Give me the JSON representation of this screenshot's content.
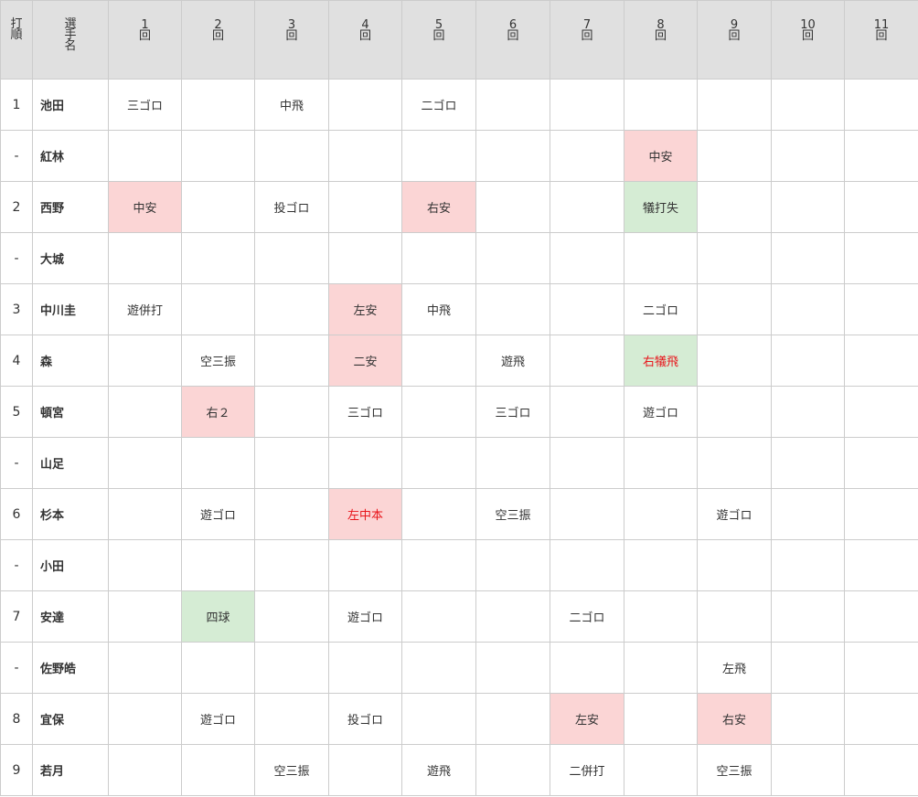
{
  "header": {
    "order_label": [
      "打",
      "順"
    ],
    "name_label": [
      "選",
      "手",
      "名"
    ],
    "innings": [
      {
        "num": "1",
        "unit": "回"
      },
      {
        "num": "2",
        "unit": "回"
      },
      {
        "num": "3",
        "unit": "回"
      },
      {
        "num": "4",
        "unit": "回"
      },
      {
        "num": "5",
        "unit": "回"
      },
      {
        "num": "6",
        "unit": "回"
      },
      {
        "num": "7",
        "unit": "回"
      },
      {
        "num": "8",
        "unit": "回"
      },
      {
        "num": "9",
        "unit": "回"
      },
      {
        "num": "10",
        "unit": "回"
      },
      {
        "num": "11",
        "unit": "回"
      }
    ]
  },
  "colors": {
    "hit_bg": "#fbd5d5",
    "other_bg": "#d5ecd4",
    "scoring_text": "#e8161c",
    "header_bg": "#e0e0e0"
  },
  "rows": [
    {
      "order": "1",
      "name": "池田",
      "cells": [
        {
          "text": "三ゴロ"
        },
        {
          "text": ""
        },
        {
          "text": "中飛"
        },
        {
          "text": ""
        },
        {
          "text": "二ゴロ"
        },
        {
          "text": ""
        },
        {
          "text": ""
        },
        {
          "text": ""
        },
        {
          "text": ""
        },
        {
          "text": ""
        },
        {
          "text": ""
        }
      ]
    },
    {
      "order": "-",
      "name": "紅林",
      "cells": [
        {
          "text": ""
        },
        {
          "text": ""
        },
        {
          "text": ""
        },
        {
          "text": ""
        },
        {
          "text": ""
        },
        {
          "text": ""
        },
        {
          "text": ""
        },
        {
          "text": "中安",
          "type": "hit"
        },
        {
          "text": ""
        },
        {
          "text": ""
        },
        {
          "text": ""
        }
      ]
    },
    {
      "order": "2",
      "name": "西野",
      "cells": [
        {
          "text": "中安",
          "type": "hit"
        },
        {
          "text": ""
        },
        {
          "text": "投ゴロ"
        },
        {
          "text": ""
        },
        {
          "text": "右安",
          "type": "hit"
        },
        {
          "text": ""
        },
        {
          "text": ""
        },
        {
          "text": "犠打失",
          "type": "other"
        },
        {
          "text": ""
        },
        {
          "text": ""
        },
        {
          "text": ""
        }
      ]
    },
    {
      "order": "-",
      "name": "大城",
      "cells": [
        {
          "text": ""
        },
        {
          "text": ""
        },
        {
          "text": ""
        },
        {
          "text": ""
        },
        {
          "text": ""
        },
        {
          "text": ""
        },
        {
          "text": ""
        },
        {
          "text": ""
        },
        {
          "text": ""
        },
        {
          "text": ""
        },
        {
          "text": ""
        }
      ]
    },
    {
      "order": "3",
      "name": "中川圭",
      "cells": [
        {
          "text": "遊併打"
        },
        {
          "text": ""
        },
        {
          "text": ""
        },
        {
          "text": "左安",
          "type": "hit"
        },
        {
          "text": "中飛"
        },
        {
          "text": ""
        },
        {
          "text": ""
        },
        {
          "text": "二ゴロ"
        },
        {
          "text": ""
        },
        {
          "text": ""
        },
        {
          "text": ""
        }
      ]
    },
    {
      "order": "4",
      "name": "森",
      "cells": [
        {
          "text": ""
        },
        {
          "text": "空三振"
        },
        {
          "text": ""
        },
        {
          "text": "二安",
          "type": "hit"
        },
        {
          "text": ""
        },
        {
          "text": "遊飛"
        },
        {
          "text": ""
        },
        {
          "text": "右犠飛",
          "type": "other",
          "scoring": true
        },
        {
          "text": ""
        },
        {
          "text": ""
        },
        {
          "text": ""
        }
      ]
    },
    {
      "order": "5",
      "name": "頓宮",
      "cells": [
        {
          "text": ""
        },
        {
          "text": "右２",
          "type": "hit"
        },
        {
          "text": ""
        },
        {
          "text": "三ゴロ"
        },
        {
          "text": ""
        },
        {
          "text": "三ゴロ"
        },
        {
          "text": ""
        },
        {
          "text": "遊ゴロ"
        },
        {
          "text": ""
        },
        {
          "text": ""
        },
        {
          "text": ""
        }
      ]
    },
    {
      "order": "-",
      "name": "山足",
      "cells": [
        {
          "text": ""
        },
        {
          "text": ""
        },
        {
          "text": ""
        },
        {
          "text": ""
        },
        {
          "text": ""
        },
        {
          "text": ""
        },
        {
          "text": ""
        },
        {
          "text": ""
        },
        {
          "text": ""
        },
        {
          "text": ""
        },
        {
          "text": ""
        }
      ]
    },
    {
      "order": "6",
      "name": "杉本",
      "cells": [
        {
          "text": ""
        },
        {
          "text": "遊ゴロ"
        },
        {
          "text": ""
        },
        {
          "text": "左中本",
          "type": "hit",
          "scoring": true
        },
        {
          "text": ""
        },
        {
          "text": "空三振"
        },
        {
          "text": ""
        },
        {
          "text": ""
        },
        {
          "text": "遊ゴロ"
        },
        {
          "text": ""
        },
        {
          "text": ""
        }
      ]
    },
    {
      "order": "-",
      "name": "小田",
      "cells": [
        {
          "text": ""
        },
        {
          "text": ""
        },
        {
          "text": ""
        },
        {
          "text": ""
        },
        {
          "text": ""
        },
        {
          "text": ""
        },
        {
          "text": ""
        },
        {
          "text": ""
        },
        {
          "text": ""
        },
        {
          "text": ""
        },
        {
          "text": ""
        }
      ]
    },
    {
      "order": "7",
      "name": "安達",
      "cells": [
        {
          "text": ""
        },
        {
          "text": "四球",
          "type": "other"
        },
        {
          "text": ""
        },
        {
          "text": "遊ゴロ"
        },
        {
          "text": ""
        },
        {
          "text": ""
        },
        {
          "text": "二ゴロ"
        },
        {
          "text": ""
        },
        {
          "text": ""
        },
        {
          "text": ""
        },
        {
          "text": ""
        }
      ]
    },
    {
      "order": "-",
      "name": "佐野皓",
      "cells": [
        {
          "text": ""
        },
        {
          "text": ""
        },
        {
          "text": ""
        },
        {
          "text": ""
        },
        {
          "text": ""
        },
        {
          "text": ""
        },
        {
          "text": ""
        },
        {
          "text": ""
        },
        {
          "text": "左飛"
        },
        {
          "text": ""
        },
        {
          "text": ""
        }
      ]
    },
    {
      "order": "8",
      "name": "宜保",
      "cells": [
        {
          "text": ""
        },
        {
          "text": "遊ゴロ"
        },
        {
          "text": ""
        },
        {
          "text": "投ゴロ"
        },
        {
          "text": ""
        },
        {
          "text": ""
        },
        {
          "text": "左安",
          "type": "hit"
        },
        {
          "text": ""
        },
        {
          "text": "右安",
          "type": "hit"
        },
        {
          "text": ""
        },
        {
          "text": ""
        }
      ]
    },
    {
      "order": "9",
      "name": "若月",
      "cells": [
        {
          "text": ""
        },
        {
          "text": ""
        },
        {
          "text": "空三振"
        },
        {
          "text": ""
        },
        {
          "text": "遊飛"
        },
        {
          "text": ""
        },
        {
          "text": "二併打"
        },
        {
          "text": ""
        },
        {
          "text": "空三振"
        },
        {
          "text": ""
        },
        {
          "text": ""
        }
      ]
    }
  ]
}
